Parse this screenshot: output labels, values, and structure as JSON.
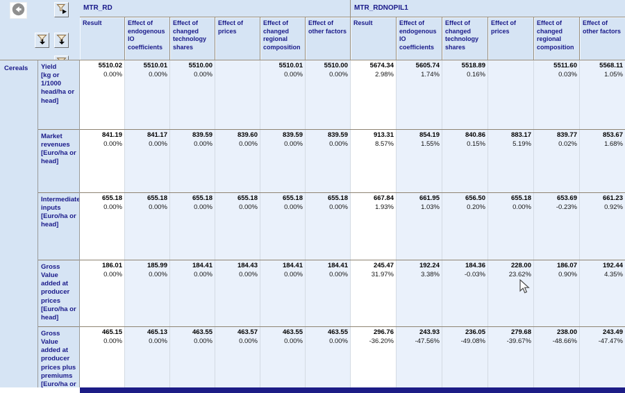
{
  "toolbar": {
    "buttons": [
      {
        "name": "back",
        "icon": "arrow-left-circle"
      },
      {
        "name": "column-selection",
        "icon": "funnel-right"
      },
      {
        "name": "row-selection-1",
        "icon": "funnel-down"
      },
      {
        "name": "row-selection-2",
        "icon": "funnel-down"
      },
      {
        "name": "row-selection-3",
        "icon": "funnel-down"
      }
    ]
  },
  "colors": {
    "header_bg": "#d6e4f4",
    "header_text": "#191989",
    "cell_effect_bg": "#eaf1fb",
    "cell_result_bg": "#ffffff",
    "bottom_bar": "#1c1c86"
  },
  "table": {
    "region_label": "Cereals",
    "groups": [
      {
        "label": "MTR_RD",
        "columns": [
          "Result",
          "Effect of endogenous IO coefficients",
          "Effect of changed technology shares",
          "Effect of prices",
          "Effect of changed regional composition",
          "Effect of other factors"
        ]
      },
      {
        "label": "MTR_RDNOPIL1",
        "columns": [
          "Result",
          "Effect of endogenous IO coefficients",
          "Effect of changed technology shares",
          "Effect of prices",
          "Effect of changed regional composition",
          "Effect of other factors"
        ]
      }
    ],
    "rows": [
      {
        "name": "Yield",
        "unit": "[kg or 1/1000 head/ha or head]",
        "cells": [
          {
            "value": "5510.02",
            "pct": "0.00%"
          },
          {
            "value": "5510.01",
            "pct": "0.00%"
          },
          {
            "value": "5510.00",
            "pct": "0.00%"
          },
          {
            "value": "",
            "pct": ""
          },
          {
            "value": "5510.01",
            "pct": "0.00%"
          },
          {
            "value": "5510.00",
            "pct": "0.00%"
          },
          {
            "value": "5674.34",
            "pct": "2.98%"
          },
          {
            "value": "5605.74",
            "pct": "1.74%"
          },
          {
            "value": "5518.89",
            "pct": "0.16%"
          },
          {
            "value": "",
            "pct": ""
          },
          {
            "value": "5511.60",
            "pct": "0.03%"
          },
          {
            "value": "5568.11",
            "pct": "1.05%"
          }
        ]
      },
      {
        "name": "Market revenues",
        "unit": "[Euro/ha or head]",
        "cells": [
          {
            "value": "841.19",
            "pct": "0.00%"
          },
          {
            "value": "841.17",
            "pct": "0.00%"
          },
          {
            "value": "839.59",
            "pct": "0.00%"
          },
          {
            "value": "839.60",
            "pct": "0.00%"
          },
          {
            "value": "839.59",
            "pct": "0.00%"
          },
          {
            "value": "839.59",
            "pct": "0.00%"
          },
          {
            "value": "913.31",
            "pct": "8.57%"
          },
          {
            "value": "854.19",
            "pct": "1.55%"
          },
          {
            "value": "840.86",
            "pct": "0.15%"
          },
          {
            "value": "883.17",
            "pct": "5.19%"
          },
          {
            "value": "839.77",
            "pct": "0.02%"
          },
          {
            "value": "853.67",
            "pct": "1.68%"
          }
        ]
      },
      {
        "name": "Intermediate inputs",
        "unit": "[Euro/ha or head]",
        "cells": [
          {
            "value": "655.18",
            "pct": "0.00%"
          },
          {
            "value": "655.18",
            "pct": "0.00%"
          },
          {
            "value": "655.18",
            "pct": "0.00%"
          },
          {
            "value": "655.18",
            "pct": "0.00%"
          },
          {
            "value": "655.18",
            "pct": "0.00%"
          },
          {
            "value": "655.18",
            "pct": "0.00%"
          },
          {
            "value": "667.84",
            "pct": "1.93%"
          },
          {
            "value": "661.95",
            "pct": "1.03%"
          },
          {
            "value": "656.50",
            "pct": "0.20%"
          },
          {
            "value": "655.18",
            "pct": "0.00%"
          },
          {
            "value": "653.69",
            "pct": "-0.23%"
          },
          {
            "value": "661.23",
            "pct": "0.92%"
          }
        ]
      },
      {
        "name": "Gross Value added at producer prices",
        "unit": "[Euro/ha or head]",
        "cells": [
          {
            "value": "186.01",
            "pct": "0.00%"
          },
          {
            "value": "185.99",
            "pct": "0.00%"
          },
          {
            "value": "184.41",
            "pct": "0.00%"
          },
          {
            "value": "184.43",
            "pct": "0.00%"
          },
          {
            "value": "184.41",
            "pct": "0.00%"
          },
          {
            "value": "184.41",
            "pct": "0.00%"
          },
          {
            "value": "245.47",
            "pct": "31.97%"
          },
          {
            "value": "192.24",
            "pct": "3.38%"
          },
          {
            "value": "184.36",
            "pct": "-0.03%"
          },
          {
            "value": "228.00",
            "pct": "23.62%"
          },
          {
            "value": "186.07",
            "pct": "0.90%"
          },
          {
            "value": "192.44",
            "pct": "4.35%"
          }
        ]
      },
      {
        "name": "Gross Value added at producer prices plus premiums",
        "unit": "[Euro/ha or head]",
        "cells": [
          {
            "value": "465.15",
            "pct": "0.00%"
          },
          {
            "value": "465.13",
            "pct": "0.00%"
          },
          {
            "value": "463.55",
            "pct": "0.00%"
          },
          {
            "value": "463.57",
            "pct": "0.00%"
          },
          {
            "value": "463.55",
            "pct": "0.00%"
          },
          {
            "value": "463.55",
            "pct": "0.00%"
          },
          {
            "value": "296.76",
            "pct": "-36.20%"
          },
          {
            "value": "243.93",
            "pct": "-47.56%"
          },
          {
            "value": "236.05",
            "pct": "-49.08%"
          },
          {
            "value": "279.68",
            "pct": "-39.67%"
          },
          {
            "value": "238.00",
            "pct": "-48.66%"
          },
          {
            "value": "243.49",
            "pct": "-47.47%"
          }
        ]
      }
    ]
  }
}
